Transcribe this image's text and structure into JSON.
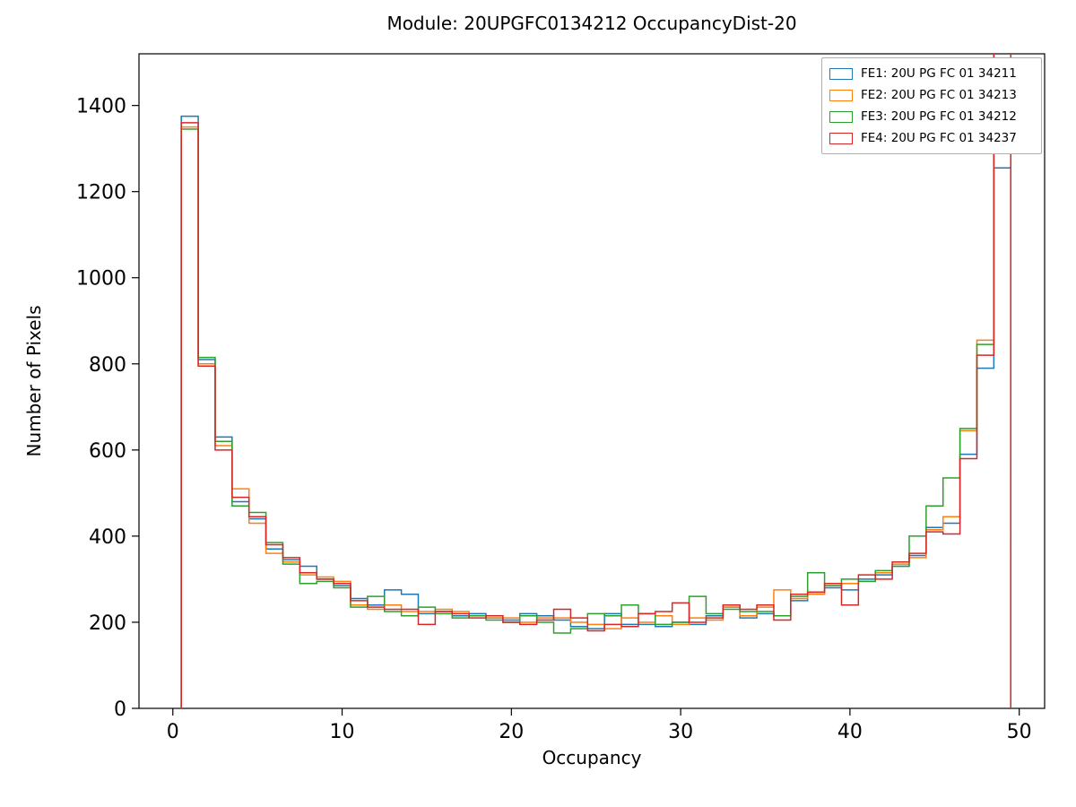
{
  "title": "Module: 20UPGFC0134212 OccupancyDist-20",
  "chart_data": {
    "type": "histogram-step",
    "title": "Module: 20UPGFC0134212 OccupancyDist-20",
    "xlabel": "Occupancy",
    "ylabel": "Number of Pixels",
    "xlim": [
      -2,
      51.5
    ],
    "ylim": [
      0,
      1520
    ],
    "x_ticks": [
      0,
      10,
      20,
      30,
      40,
      50
    ],
    "y_ticks": [
      0,
      200,
      400,
      600,
      800,
      1000,
      1200,
      1400
    ],
    "bin_start": 0.5,
    "bin_width": 1,
    "grid": false,
    "legend_position": "upper right",
    "series": [
      {
        "name": "FE1: 20U PG FC 01 34211",
        "color": "#1f77b4",
        "values": [
          1375,
          810,
          630,
          480,
          440,
          370,
          345,
          330,
          300,
          285,
          255,
          240,
          275,
          265,
          220,
          225,
          215,
          220,
          210,
          205,
          220,
          215,
          205,
          190,
          185,
          220,
          195,
          195,
          190,
          200,
          195,
          215,
          235,
          210,
          220,
          215,
          250,
          270,
          280,
          275,
          300,
          310,
          330,
          355,
          420,
          430,
          590,
          790,
          1255
        ]
      },
      {
        "name": "FE2: 20U PG FC 01 34213",
        "color": "#ff7f0e",
        "values": [
          1350,
          800,
          610,
          510,
          430,
          360,
          340,
          310,
          305,
          295,
          240,
          230,
          240,
          225,
          225,
          230,
          225,
          215,
          210,
          210,
          200,
          210,
          210,
          200,
          195,
          185,
          210,
          200,
          215,
          195,
          210,
          205,
          235,
          215,
          235,
          275,
          255,
          265,
          285,
          290,
          295,
          315,
          335,
          350,
          415,
          445,
          645,
          855,
          1600
        ]
      },
      {
        "name": "FE3: 20U PG FC 01 34212",
        "color": "#2ca02c",
        "values": [
          1345,
          815,
          620,
          470,
          455,
          385,
          335,
          290,
          295,
          280,
          235,
          260,
          225,
          215,
          235,
          220,
          210,
          215,
          205,
          200,
          215,
          200,
          175,
          185,
          220,
          215,
          240,
          220,
          195,
          200,
          260,
          220,
          230,
          225,
          225,
          215,
          260,
          315,
          285,
          300,
          295,
          320,
          330,
          400,
          470,
          535,
          650,
          845,
          1550
        ]
      },
      {
        "name": "FE4: 20U PG FC 01 34237",
        "color": "#d62728",
        "values": [
          1360,
          795,
          600,
          490,
          445,
          380,
          350,
          315,
          300,
          290,
          250,
          235,
          230,
          230,
          195,
          225,
          220,
          210,
          215,
          200,
          195,
          205,
          230,
          210,
          180,
          195,
          190,
          220,
          225,
          245,
          200,
          210,
          240,
          230,
          240,
          205,
          265,
          270,
          290,
          240,
          310,
          300,
          340,
          360,
          410,
          405,
          580,
          820,
          1650
        ]
      }
    ]
  }
}
